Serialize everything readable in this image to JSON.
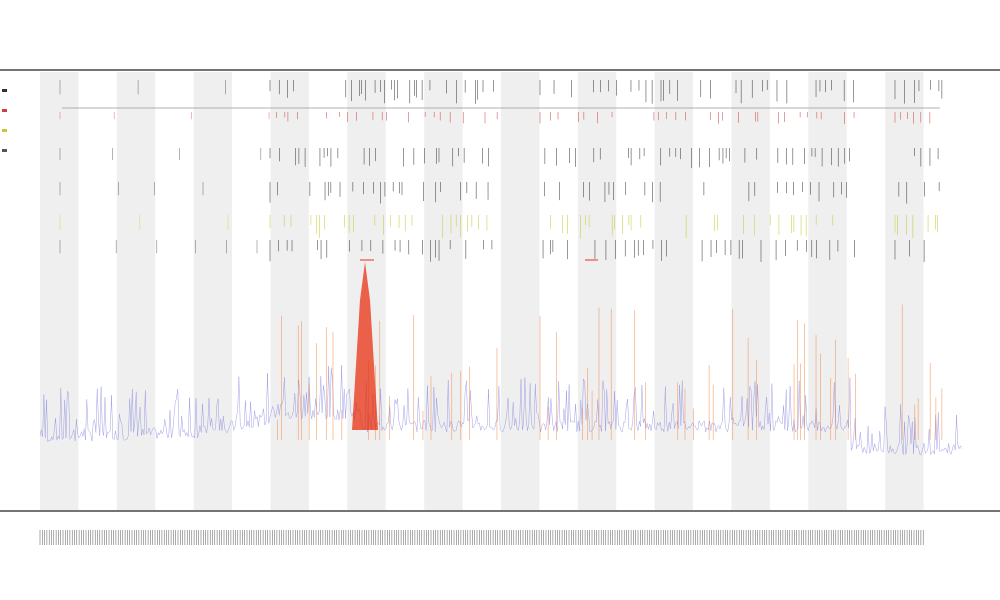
{
  "header": {
    "title": "",
    "subtitle_1": "",
    "subtitle_2": ""
  },
  "legend": {
    "items": [
      {
        "label": "",
        "color": "#333333"
      },
      {
        "label": "",
        "color": "#d04040"
      },
      {
        "label": "",
        "color": "#c8c832"
      },
      {
        "label": "",
        "color": "#555555"
      }
    ]
  },
  "region_labels": {
    "upper": "",
    "lower": ""
  },
  "colors": {
    "band_shade": "#efefef",
    "coverage": "#8a8ae0",
    "peak": "#f07830",
    "peak_strong": "#e83010",
    "ticks_black": "#333333",
    "ticks_red": "#d04040",
    "ticks_yellow": "#c8c832",
    "axis": "#222222"
  },
  "chart_data": {
    "type": "area",
    "title": "",
    "xlabel": "",
    "ylabel": "",
    "grid": false,
    "legend_position": "left",
    "alternating_bands": 24,
    "x_range": [
      0,
      1
    ],
    "y_range": [
      0,
      1
    ]
  }
}
